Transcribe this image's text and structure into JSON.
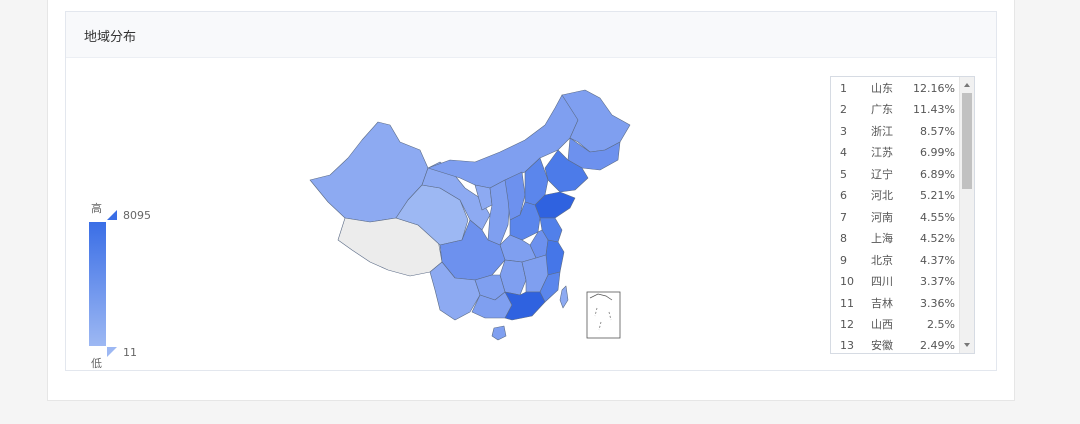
{
  "panel": {
    "title": "地域分布"
  },
  "legend": {
    "high_label": "高",
    "low_label": "低",
    "max_value": "8095",
    "min_value": "11"
  },
  "chart_data": {
    "type": "table",
    "columns": [
      "rank",
      "province",
      "share"
    ],
    "rows": [
      {
        "rank": "1",
        "province": "山东",
        "share": "12.16%"
      },
      {
        "rank": "2",
        "province": "广东",
        "share": "11.43%"
      },
      {
        "rank": "3",
        "province": "浙江",
        "share": "8.57%"
      },
      {
        "rank": "4",
        "province": "江苏",
        "share": "6.99%"
      },
      {
        "rank": "5",
        "province": "辽宁",
        "share": "6.89%"
      },
      {
        "rank": "6",
        "province": "河北",
        "share": "5.21%"
      },
      {
        "rank": "7",
        "province": "河南",
        "share": "4.55%"
      },
      {
        "rank": "8",
        "province": "上海",
        "share": "4.52%"
      },
      {
        "rank": "9",
        "province": "北京",
        "share": "4.37%"
      },
      {
        "rank": "10",
        "province": "四川",
        "share": "3.37%"
      },
      {
        "rank": "11",
        "province": "吉林",
        "share": "3.36%"
      },
      {
        "rank": "12",
        "province": "山西",
        "share": "2.5%"
      },
      {
        "rank": "13",
        "province": "安徽",
        "share": "2.49%"
      }
    ],
    "color_scale": {
      "high": "#3a6ee6",
      "low": "#9db8f3",
      "no_data": "#ececec",
      "max": 8095,
      "min": 11
    }
  }
}
